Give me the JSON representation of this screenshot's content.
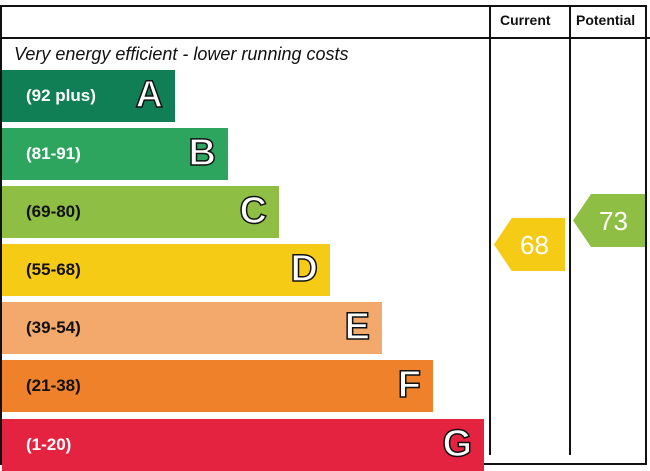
{
  "chart_data": {
    "type": "bar",
    "title": "",
    "header": {
      "current": "Current",
      "potential": "Potential"
    },
    "top_label": "Very energy efficient - lower running costs",
    "bands": [
      {
        "letter": "A",
        "range": "(92 plus)",
        "color": "#117f56"
      },
      {
        "letter": "B",
        "range": "(81-91)",
        "color": "#2ea55e"
      },
      {
        "letter": "C",
        "range": "(69-80)",
        "color": "#8fbe44"
      },
      {
        "letter": "D",
        "range": "(55-68)",
        "color": "#f5cb16"
      },
      {
        "letter": "E",
        "range": "(39-54)",
        "color": "#f2a96b"
      },
      {
        "letter": "F",
        "range": "(21-38)",
        "color": "#ee8129"
      },
      {
        "letter": "G",
        "range": "(1-20)",
        "color": "#e3233f"
      }
    ],
    "current": {
      "value": "68",
      "band": "D",
      "color": "#f5cb16"
    },
    "potential": {
      "value": "73",
      "band": "C",
      "color": "#8fbe44"
    }
  }
}
